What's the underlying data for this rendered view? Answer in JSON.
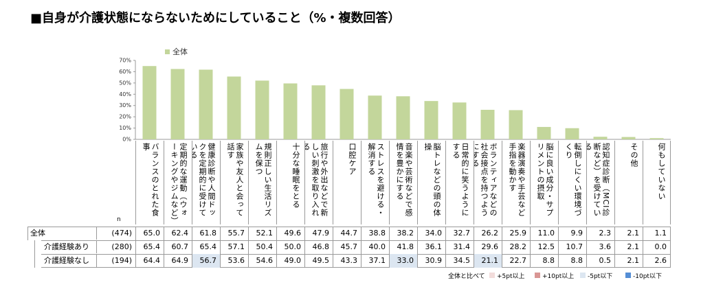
{
  "title": "■自身が介護状態にならないためにしていること（%・複数回答）",
  "chart_data": {
    "type": "bar",
    "categories": [
      "バランスのとれた食事",
      "定期的な運動（ウォーキングやジムなど）",
      "健康診断や人間ドックを定期的に受けている",
      "家族や友人と会って話す",
      "規則正しい生活リズムを保つ",
      "十分な睡眠をとる",
      "旅行や外出などで新しい刺激を取り入れる",
      "口腔ケア",
      "ストレスを避ける・解消する",
      "音楽や芸術などで感情を豊かにする",
      "脳トレなどの頭の体操",
      "日常的に笑うようにする",
      "ボランティアなどの社会接点を持つようにする",
      "楽器演奏や手芸など手指を動かす",
      "脳に良い成分・サプリメントの摂取",
      "転倒しにくい環境づくり",
      "認知症診断（MCI診断など）を受けている",
      "その他",
      "何もしていない"
    ],
    "series": [
      {
        "name": "全体",
        "color": "#c3d69b",
        "values": [
          65.0,
          62.4,
          61.8,
          55.7,
          52.1,
          49.6,
          47.9,
          44.7,
          38.8,
          38.2,
          34.0,
          32.7,
          26.2,
          25.9,
          11.0,
          9.9,
          2.3,
          2.1,
          1.1
        ],
        "value_labels": [
          "65.0",
          "62.4",
          "61.8",
          "55.7",
          "52.1",
          "49.6",
          "47.9",
          "44.7",
          "38.8",
          "38.2",
          "34.0",
          "32.7",
          "26.2",
          "25.9",
          "11.0",
          "9.9",
          "2.3",
          "2.1",
          "1.1"
        ]
      }
    ],
    "ylim": [
      0,
      70
    ],
    "yticks": [
      {
        "value": 0,
        "label": "0%"
      },
      {
        "value": 10,
        "label": "10%"
      },
      {
        "value": 20,
        "label": "20%"
      },
      {
        "value": 30,
        "label": "30%"
      },
      {
        "value": 40,
        "label": "40%"
      },
      {
        "value": 50,
        "label": "50%"
      },
      {
        "value": 60,
        "label": "60%"
      },
      {
        "value": 70,
        "label": "70%"
      }
    ],
    "legend": "top-left"
  },
  "table": {
    "n_label": "n",
    "rows": [
      {
        "label": "全体",
        "n": "(474)"
      },
      {
        "label": "介護経験あり",
        "n": "(280)",
        "values": [
          "65.4",
          "60.7",
          "65.4",
          "57.1",
          "50.4",
          "50.0",
          "46.8",
          "45.7",
          "40.0",
          "41.8",
          "36.1",
          "31.4",
          "29.6",
          "28.2",
          "12.5",
          "10.7",
          "3.6",
          "2.1",
          "0.0"
        ],
        "colors": [
          null,
          null,
          null,
          null,
          null,
          null,
          null,
          null,
          null,
          null,
          null,
          null,
          null,
          null,
          null,
          null,
          null,
          null,
          null
        ]
      },
      {
        "label": "介護経験なし",
        "n": "(194)",
        "values": [
          "64.4",
          "64.9",
          "56.7",
          "53.6",
          "54.6",
          "49.0",
          "49.5",
          "43.3",
          "37.1",
          "33.0",
          "30.9",
          "34.5",
          "21.1",
          "22.7",
          "8.8",
          "8.8",
          "0.5",
          "2.1",
          "2.6"
        ],
        "colors": [
          null,
          null,
          "#dce6f1",
          null,
          null,
          null,
          null,
          null,
          null,
          "#dce6f1",
          null,
          null,
          "#dce6f1",
          null,
          null,
          null,
          null,
          null,
          null
        ]
      }
    ]
  },
  "key": {
    "title": "全体と比べて",
    "items": [
      {
        "label": "+5pt以上",
        "color": "#f2dcdb"
      },
      {
        "label": "+10pt以上",
        "color": "#d99694"
      },
      {
        "label": "-5pt以下",
        "color": "#dce6f1"
      },
      {
        "label": "-10pt以下",
        "color": "#558ed5"
      }
    ]
  }
}
